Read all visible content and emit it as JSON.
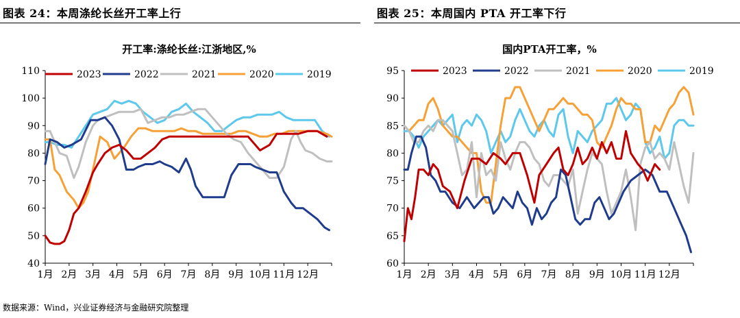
{
  "header": {
    "left_title": "图表 24：本周涤纶长丝开工率上行",
    "right_title": "图表 25：本周国内 PTA 开工率下行"
  },
  "footer": {
    "source": "数据来源：Wind，兴业证券经济与金融研究院整理"
  },
  "colors": {
    "2023": "#C00000",
    "2022": "#1F3B8C",
    "2021": "#BFBFBF",
    "2020": "#F7A035",
    "2019": "#5BC8EC"
  },
  "chart_data": [
    {
      "type": "line",
      "title": "开工率:涤纶长丝:江浙地区,%",
      "xlabel": "",
      "ylabel": "",
      "ylim": [
        40,
        110
      ],
      "yticks": [
        40,
        50,
        60,
        70,
        80,
        90,
        100,
        110
      ],
      "xticks": [
        "1月",
        "2月",
        "3月",
        "4月",
        "5月",
        "6月",
        "7月",
        "8月",
        "9月",
        "10月",
        "11月",
        "12月"
      ],
      "legend": "top",
      "series": [
        {
          "name": "2023",
          "x": [
            1,
            1.2,
            1.4,
            1.6,
            1.8,
            2.0,
            2.2,
            2.4,
            2.7,
            3.0,
            3.2,
            3.5,
            3.8,
            4.1,
            4.4,
            4.7,
            5.0,
            5.3,
            5.6,
            5.9,
            6.2,
            6.5,
            6.8,
            7.1,
            7.4,
            7.8,
            8.2,
            8.6,
            9.0,
            9.5,
            10.0,
            10.4,
            10.7,
            11.0,
            11.3,
            11.6,
            12.0,
            12.4,
            12.8
          ],
          "values": [
            50,
            47.5,
            47,
            47,
            48,
            52,
            58,
            60,
            66,
            73,
            76,
            80,
            82,
            83,
            81,
            78,
            78,
            80,
            82,
            85,
            86,
            86,
            86,
            86,
            86,
            86,
            86,
            86,
            86,
            86,
            81,
            83,
            87,
            87,
            87,
            87,
            88,
            88,
            86
          ]
        },
        {
          "name": "2022",
          "x": [
            1,
            1.2,
            1.5,
            1.8,
            2.1,
            2.5,
            2.9,
            3.2,
            3.5,
            3.8,
            4.1,
            4.4,
            4.7,
            4.9,
            5.2,
            5.5,
            5.8,
            6.0,
            6.3,
            6.6,
            6.9,
            7.1,
            7.3,
            7.6,
            7.8,
            8.0,
            8.2,
            8.5,
            8.8,
            9.1,
            9.4,
            9.6,
            9.8,
            10.1,
            10.4,
            10.7,
            11.0,
            11.3,
            11.5,
            11.8,
            12.1,
            12.4,
            12.7,
            12.9
          ],
          "values": [
            76,
            85,
            84,
            82,
            83,
            85,
            92,
            92,
            93,
            90,
            85,
            74,
            74,
            75,
            76,
            76,
            77,
            76,
            75,
            73,
            78,
            74,
            68,
            64,
            64,
            64,
            64,
            64,
            72,
            76,
            76,
            76,
            75,
            74,
            73,
            73,
            66,
            62,
            60,
            60,
            58,
            56,
            53,
            52
          ]
        },
        {
          "name": "2021",
          "x": [
            1,
            1.2,
            1.4,
            1.6,
            1.9,
            2.2,
            2.4,
            2.7,
            3.0,
            3.2,
            3.5,
            3.8,
            4.1,
            4.4,
            4.7,
            5.0,
            5.3,
            5.6,
            5.9,
            6.2,
            6.5,
            6.8,
            7.1,
            7.4,
            7.7,
            8.0,
            8.3,
            8.6,
            8.9,
            9.2,
            9.5,
            9.8,
            10.1,
            10.4,
            10.7,
            11.0,
            11.3,
            11.5,
            11.7,
            11.9,
            12.2,
            12.5,
            12.8,
            13.0
          ],
          "values": [
            88,
            88,
            84,
            80,
            79,
            71,
            75,
            84,
            90,
            92,
            93,
            94,
            95,
            95,
            95,
            96,
            91,
            92,
            93,
            93,
            94,
            94,
            95,
            96,
            96,
            93,
            90,
            87,
            85,
            84,
            80,
            77,
            74,
            71,
            71,
            75,
            85,
            88,
            84,
            81,
            80,
            78,
            77,
            77
          ]
        },
        {
          "name": "2020",
          "x": [
            1,
            1.2,
            1.4,
            1.6,
            1.9,
            2.2,
            2.4,
            2.6,
            2.8,
            3.0,
            3.3,
            3.6,
            3.9,
            4.1,
            4.3,
            4.6,
            4.9,
            5.2,
            5.5,
            5.8,
            6.1,
            6.4,
            6.7,
            7.0,
            7.3,
            7.6,
            7.9,
            8.2,
            8.5,
            8.8,
            9.1,
            9.4,
            9.7,
            10.0,
            10.3,
            10.6,
            10.9,
            11.2,
            11.6,
            12.0,
            12.4,
            12.8,
            13.0
          ],
          "values": [
            85,
            85,
            74,
            72,
            66,
            63,
            60,
            62,
            66,
            74,
            86,
            84,
            78,
            80,
            82,
            86,
            89,
            89,
            88,
            88,
            88,
            88,
            89,
            88,
            88,
            87,
            87,
            87,
            87,
            87,
            88,
            88,
            87,
            86,
            86,
            87,
            87,
            88,
            88,
            88,
            88,
            87,
            86
          ]
        },
        {
          "name": "2019",
          "x": [
            1,
            1.2,
            1.5,
            1.8,
            2.1,
            2.4,
            2.7,
            3.0,
            3.3,
            3.6,
            3.9,
            4.2,
            4.5,
            4.8,
            5.1,
            5.4,
            5.7,
            6.0,
            6.3,
            6.6,
            6.9,
            7.2,
            7.5,
            7.8,
            8.1,
            8.4,
            8.7,
            9.0,
            9.3,
            9.6,
            9.9,
            10.2,
            10.5,
            10.8,
            11.1,
            11.4,
            11.7,
            12.0,
            12.3,
            12.6,
            12.9
          ],
          "values": [
            84,
            84,
            83,
            83,
            82,
            86,
            90,
            94,
            95,
            96,
            99,
            98,
            99,
            98,
            95,
            93,
            91,
            92,
            95,
            96,
            98,
            95,
            93,
            91,
            88,
            88,
            90,
            92,
            93,
            93,
            94,
            94,
            94,
            95,
            93,
            92,
            92,
            92,
            92,
            88,
            86
          ]
        }
      ]
    },
    {
      "type": "line",
      "title": "国内PTA开工率，%",
      "xlabel": "",
      "ylabel": "",
      "ylim": [
        60,
        95
      ],
      "yticks": [
        60,
        65,
        70,
        75,
        80,
        85,
        90,
        95
      ],
      "xticks": [
        "1月",
        "2月",
        "3月",
        "4月",
        "5月",
        "6月",
        "7月",
        "8月",
        "9月",
        "10月",
        "11月",
        "12月"
      ],
      "legend": "top",
      "series": [
        {
          "name": "2023",
          "x": [
            1,
            1.15,
            1.3,
            1.45,
            1.6,
            1.8,
            2.0,
            2.2,
            2.4,
            2.6,
            2.9,
            3.2,
            3.5,
            3.8,
            4.1,
            4.4,
            4.7,
            5.0,
            5.2,
            5.5,
            5.8,
            6.1,
            6.4,
            6.6,
            6.9,
            7.2,
            7.4,
            7.6,
            7.8,
            8.0,
            8.2,
            8.4,
            8.6,
            8.8,
            9.0,
            9.2,
            9.4,
            9.6,
            9.8,
            10.0,
            10.2,
            10.4,
            10.7,
            10.9,
            11.1,
            11.4,
            11.6
          ],
          "values": [
            64,
            70,
            68,
            72,
            77,
            77,
            76,
            78,
            77,
            74,
            73,
            70,
            75,
            79,
            79,
            78,
            80,
            79,
            78,
            80,
            80,
            76,
            71,
            76,
            78,
            80,
            81,
            77,
            76,
            78,
            81,
            78,
            79,
            81,
            79,
            82,
            80,
            82,
            79,
            79,
            84,
            80,
            78,
            77,
            75,
            78,
            77
          ]
        },
        {
          "name": "2022",
          "x": [
            1,
            1.15,
            1.3,
            1.5,
            1.7,
            1.9,
            2.1,
            2.3,
            2.5,
            2.7,
            3.0,
            3.3,
            3.6,
            3.9,
            4.1,
            4.3,
            4.5,
            4.7,
            4.9,
            5.1,
            5.3,
            5.5,
            5.7,
            5.9,
            6.1,
            6.3,
            6.5,
            6.7,
            6.9,
            7.1,
            7.3,
            7.5,
            7.7,
            7.9,
            8.1,
            8.3,
            8.5,
            8.7,
            8.9,
            9.1,
            9.3,
            9.5,
            9.7,
            9.9,
            10.1,
            10.4,
            10.7,
            11.0,
            11.3,
            11.6,
            11.9,
            12.2,
            12.5,
            12.7,
            12.9
          ],
          "values": [
            77,
            77,
            80,
            83,
            83,
            81,
            76,
            75,
            73,
            73,
            71,
            70,
            72,
            70,
            71,
            72,
            72,
            69,
            70,
            72,
            71,
            70,
            73,
            71,
            70,
            67,
            70,
            68,
            69,
            71,
            72,
            77,
            76,
            72,
            68,
            67,
            68,
            68,
            71,
            72,
            70,
            68,
            69,
            71,
            73,
            75,
            76,
            77,
            76,
            73,
            73,
            70,
            67,
            65,
            62
          ]
        },
        {
          "name": "2021",
          "x": [
            1,
            1.2,
            1.4,
            1.6,
            1.8,
            2.0,
            2.2,
            2.4,
            2.6,
            2.8,
            3.0,
            3.2,
            3.4,
            3.6,
            3.8,
            4.0,
            4.2,
            4.4,
            4.6,
            4.8,
            5.0,
            5.2,
            5.4,
            5.6,
            5.8,
            6.0,
            6.2,
            6.4,
            6.6,
            6.8,
            7.0,
            7.2,
            7.4,
            7.6,
            7.8,
            8.0,
            8.2,
            8.4,
            8.6,
            8.8,
            9.0,
            9.2,
            9.4,
            9.6,
            9.8,
            10.0,
            10.2,
            10.4,
            10.6,
            10.8,
            11.0,
            11.2,
            11.4,
            11.6,
            11.8,
            12.0,
            12.2,
            12.4,
            12.6,
            12.8,
            13.0
          ],
          "values": [
            85,
            84,
            82,
            82,
            84,
            85,
            84,
            86,
            86,
            85,
            84,
            80,
            76,
            77,
            82,
            72,
            80,
            76,
            77,
            75,
            82,
            79,
            77,
            80,
            82,
            82,
            81,
            79,
            78,
            75,
            74,
            76,
            76,
            75,
            74,
            77,
            69,
            73,
            77,
            80,
            79,
            78,
            73,
            69,
            71,
            73,
            77,
            72,
            66,
            78,
            81,
            82,
            79,
            80,
            79,
            77,
            82,
            78,
            74,
            71,
            80
          ]
        },
        {
          "name": "2020",
          "x": [
            1,
            1.2,
            1.4,
            1.6,
            1.8,
            2.0,
            2.2,
            2.4,
            2.6,
            2.8,
            3.0,
            3.2,
            3.4,
            3.6,
            3.8,
            4.0,
            4.2,
            4.4,
            4.6,
            4.8,
            5.0,
            5.2,
            5.4,
            5.6,
            5.8,
            6.0,
            6.2,
            6.4,
            6.6,
            6.8,
            7.0,
            7.2,
            7.4,
            7.6,
            7.8,
            8.0,
            8.2,
            8.4,
            8.6,
            8.8,
            9.0,
            9.2,
            9.4,
            9.6,
            9.8,
            10.0,
            10.2,
            10.4,
            10.6,
            10.8,
            11.0,
            11.2,
            11.4,
            11.6,
            11.8,
            12.0,
            12.2,
            12.4,
            12.6,
            12.8,
            13.0
          ],
          "values": [
            85,
            84,
            85,
            86,
            86,
            89,
            90,
            88,
            85,
            84,
            83,
            83,
            82,
            81,
            80,
            80,
            73,
            71,
            71,
            78,
            85,
            90,
            90,
            92,
            92,
            90,
            88,
            86,
            84,
            86,
            88,
            88,
            89,
            90,
            89,
            89,
            88,
            87,
            87,
            86,
            82,
            81,
            83,
            85,
            88,
            90,
            89,
            89,
            88,
            88,
            82,
            82,
            85,
            84,
            86,
            88,
            89,
            91,
            92,
            91,
            87
          ]
        },
        {
          "name": "2019",
          "x": [
            1,
            1.2,
            1.4,
            1.6,
            1.8,
            2.0,
            2.2,
            2.4,
            2.6,
            2.8,
            3.0,
            3.2,
            3.4,
            3.6,
            3.8,
            4.0,
            4.2,
            4.4,
            4.6,
            4.8,
            5.0,
            5.2,
            5.4,
            5.6,
            5.8,
            6.0,
            6.2,
            6.4,
            6.6,
            6.8,
            7.0,
            7.2,
            7.4,
            7.6,
            7.8,
            8.0,
            8.2,
            8.4,
            8.6,
            8.8,
            9.0,
            9.2,
            9.4,
            9.6,
            9.8,
            10.0,
            10.2,
            10.4,
            10.6,
            10.8,
            11.0,
            11.2,
            11.4,
            11.6,
            11.8,
            12.0,
            12.2,
            12.4,
            12.6,
            12.8,
            13.0
          ],
          "values": [
            84,
            84,
            83,
            81,
            83,
            84,
            85,
            86,
            85,
            86,
            87,
            82,
            85,
            86,
            85,
            87,
            86,
            84,
            80,
            82,
            84,
            82,
            83,
            86,
            88,
            86,
            84,
            83,
            85,
            86,
            84,
            83,
            87,
            88,
            83,
            80,
            84,
            83,
            82,
            84,
            85,
            86,
            89,
            89,
            90,
            88,
            86,
            87,
            89,
            88,
            82,
            80,
            81,
            83,
            79,
            80,
            85,
            86,
            86,
            85,
            85
          ]
        }
      ]
    }
  ]
}
